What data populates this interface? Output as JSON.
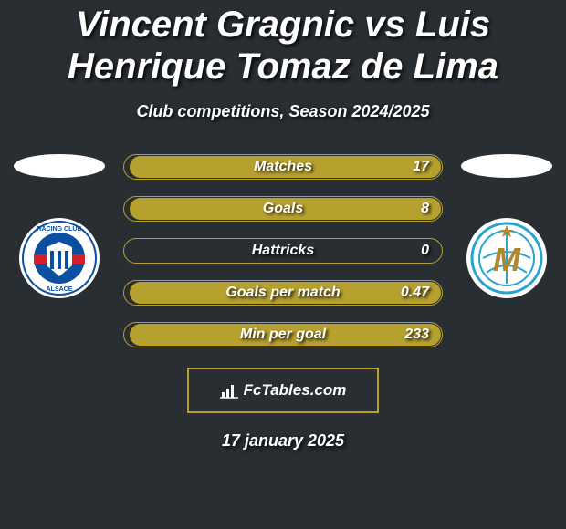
{
  "title": "Vincent Gragnic vs Luis Henrique Tomaz de Lima",
  "title_fontsize": 40,
  "subtitle": "Club competitions, Season 2024/2025",
  "subtitle_fontsize": 18,
  "background_color": "#292e33",
  "left": {
    "ellipse_color": "#ffffff",
    "crest_bg": "#ffffff",
    "crest_inner": "#0b4fa0",
    "crest_band": "#d61f2a"
  },
  "right": {
    "ellipse_color": "#ffffff",
    "crest_bg": "#ffffff",
    "crest_stroke": "#2aa4cf",
    "crest_letter": "#b0872f"
  },
  "stats": {
    "row_border": "#b6a02e",
    "fill_color": "#b6a02e",
    "label_fontsize": 16,
    "value_fontsize": 16,
    "rows": [
      {
        "label": "Matches",
        "value": "17",
        "fill_pct": 98
      },
      {
        "label": "Goals",
        "value": "8",
        "fill_pct": 98
      },
      {
        "label": "Hattricks",
        "value": "0",
        "fill_pct": 0
      },
      {
        "label": "Goals per match",
        "value": "0.47",
        "fill_pct": 98
      },
      {
        "label": "Min per goal",
        "value": "233",
        "fill_pct": 98
      }
    ]
  },
  "footer": {
    "box_border": "#b6a02e",
    "text": "FcTables.com",
    "fontsize": 17
  },
  "date": "17 january 2025",
  "date_fontsize": 18
}
